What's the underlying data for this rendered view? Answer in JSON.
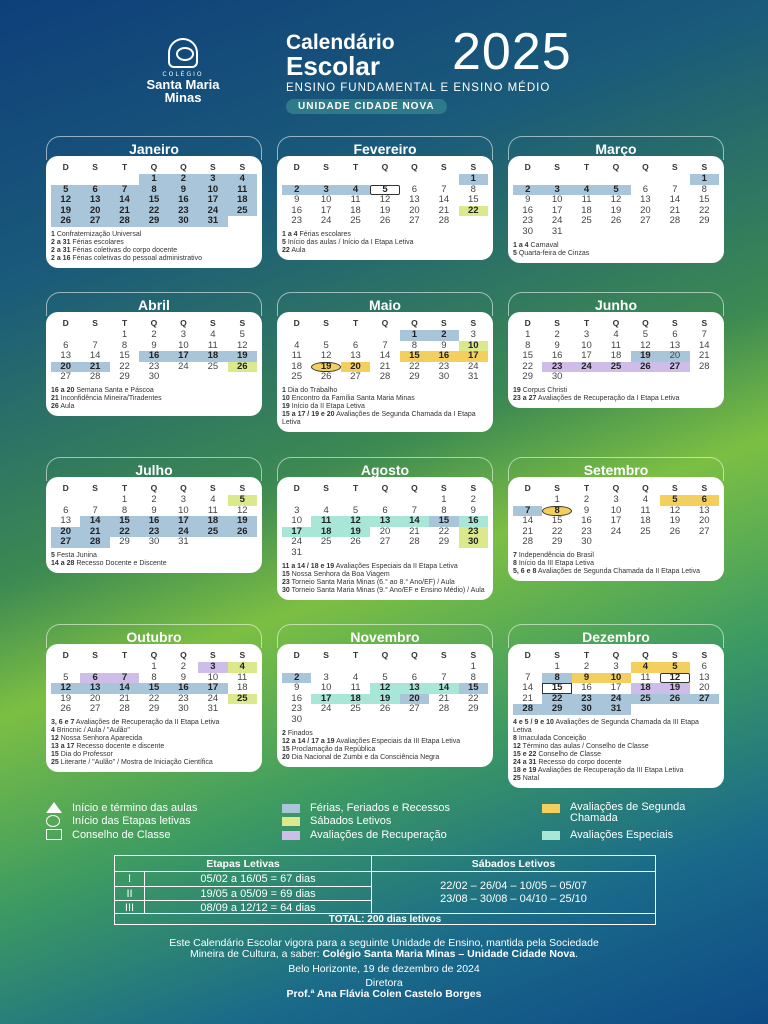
{
  "header": {
    "school_small": "COLÉGIO",
    "school_name_1": "Santa Maria",
    "school_name_2": "Minas",
    "title_1": "Calendário",
    "title_2": "Escolar",
    "year": "2025",
    "subtitle": "ENSINO FUNDAMENTAL E ENSINO MÉDIO",
    "unit": "UNIDADE CIDADE NOVA"
  },
  "weekdays": [
    "D",
    "S",
    "T",
    "Q",
    "Q",
    "S",
    "S"
  ],
  "colors": {
    "blue": "#a9c5da",
    "green": "#dbe88c",
    "purple": "#cdbde8",
    "yellow": "#f3cf5e",
    "mint": "#a8e6d8"
  },
  "months": [
    {
      "name": "Janeiro",
      "offset": 3,
      "days": 31,
      "marks": {
        "1": "blue b",
        "2": "blue b",
        "3": "blue b",
        "4": "blue b",
        "5": "blue b",
        "6": "blue b",
        "7": "blue b",
        "8": "blue b",
        "9": "blue b",
        "10": "blue b",
        "11": "blue b",
        "12": "blue b",
        "13": "blue b",
        "14": "blue b",
        "15": "blue b",
        "16": "blue b",
        "17": "blue b",
        "18": "blue b",
        "19": "blue b",
        "20": "blue b",
        "21": "blue b",
        "22": "blue b",
        "23": "blue b",
        "24": "blue b",
        "25": "blue b",
        "26": "blue b",
        "27": "blue b",
        "28": "blue b",
        "29": "blue b",
        "30": "blue b",
        "31": "blue b"
      },
      "notes": [
        {
          "d": "1",
          "t": "Confraternização Universal"
        },
        {
          "d": "2 a 31",
          "t": "Férias escolares"
        },
        {
          "d": "2 a 31",
          "t": "Férias coletivas do corpo docente"
        },
        {
          "d": "2 a 16",
          "t": "Férias coletivas do pessoal administrativo"
        }
      ]
    },
    {
      "name": "Fevereiro",
      "offset": 6,
      "days": 28,
      "marks": {
        "1": "blue b",
        "2": "blue b",
        "3": "blue b",
        "4": "blue b",
        "5": "tri b",
        "22": "green b"
      },
      "notes": [
        {
          "d": "1 a 4",
          "t": "Férias escolares"
        },
        {
          "d": "5",
          "t": "Início das aulas / Início da I Etapa Letiva"
        },
        {
          "d": "22",
          "t": "Aula"
        }
      ]
    },
    {
      "name": "Março",
      "offset": 6,
      "days": 31,
      "marks": {
        "1": "blue b",
        "2": "blue b",
        "3": "blue b",
        "4": "blue b",
        "5": "blue b"
      },
      "notes": [
        {
          "d": "1 a 4",
          "t": "Carnaval"
        },
        {
          "d": "5",
          "t": "Quarta-feira de Cinzas"
        }
      ]
    },
    {
      "name": "Abril",
      "offset": 2,
      "days": 30,
      "marks": {
        "16": "blue b",
        "17": "blue b",
        "18": "blue b",
        "19": "blue b",
        "20": "blue b",
        "21": "blue b",
        "26": "green b"
      },
      "notes": [
        {
          "d": "16 a 20",
          "t": "Semana Santa e Páscoa"
        },
        {
          "d": "21",
          "t": "Inconfidência Mineira/Tiradentes"
        },
        {
          "d": "26",
          "t": "Aula"
        }
      ]
    },
    {
      "name": "Maio",
      "offset": 4,
      "days": 31,
      "marks": {
        "1": "blue b",
        "2": "blue b",
        "10": "green b",
        "15": "yellow b",
        "16": "yellow b",
        "17": "yellow b",
        "19": "yellow circ b",
        "20": "yellow b"
      },
      "notes": [
        {
          "d": "1",
          "t": "Dia do Trabalho"
        },
        {
          "d": "10",
          "t": "Encontro da Família Santa Maria Minas"
        },
        {
          "d": "19",
          "t": "Início da II Etapa Letiva"
        },
        {
          "d": "15 a 17 / 19 e 20",
          "t": "Avaliações de Segunda Chamada da I Etapa Letiva"
        }
      ]
    },
    {
      "name": "Junho",
      "offset": 0,
      "days": 30,
      "marks": {
        "19": "blue b",
        "20": "blue",
        "23": "purple b",
        "24": "purple b",
        "25": "purple b",
        "26": "purple b",
        "27": "purple b"
      },
      "notes": [
        {
          "d": "19",
          "t": "Corpus Christi"
        },
        {
          "d": "23 a 27",
          "t": "Avaliações de Recuperação da I Etapa Letiva"
        }
      ]
    },
    {
      "name": "Julho",
      "offset": 2,
      "days": 31,
      "marks": {
        "5": "green b",
        "14": "blue b",
        "15": "blue b",
        "16": "blue b",
        "17": "blue b",
        "18": "blue b",
        "19": "blue b",
        "20": "blue b",
        "21": "blue b",
        "22": "blue b",
        "23": "blue b",
        "24": "blue b",
        "25": "blue b",
        "26": "blue b",
        "27": "blue b",
        "28": "blue b"
      },
      "notes": [
        {
          "d": "5",
          "t": "Festa Junina"
        },
        {
          "d": "14 a 28",
          "t": "Recesso Docente e Discente"
        }
      ]
    },
    {
      "name": "Agosto",
      "offset": 5,
      "days": 31,
      "marks": {
        "11": "mint b",
        "12": "mint b",
        "13": "mint b",
        "14": "mint b",
        "15": "blue b",
        "16": "mint b",
        "17": "mint b",
        "18": "mint b",
        "19": "mint b",
        "23": "green b",
        "30": "green b"
      },
      "notes": [
        {
          "d": "11 a 14 / 18 e 19",
          "t": "Avaliações Especiais da II Etapa Letiva"
        },
        {
          "d": "15",
          "t": "Nossa Senhora da Boa Viagem"
        },
        {
          "d": "23",
          "t": "Torneio Santa Maria Minas (6.° ao 8.° Ano/EF) / Aula"
        },
        {
          "d": "30",
          "t": "Torneio Santa Maria Minas (9.° Ano/EF e Ensino Médio) / Aula"
        }
      ]
    },
    {
      "name": "Setembro",
      "offset": 1,
      "days": 30,
      "marks": {
        "5": "yellow b",
        "6": "yellow b",
        "7": "blue b",
        "8": "yellow circ b"
      },
      "notes": [
        {
          "d": "7",
          "t": "Independência do Brasil"
        },
        {
          "d": "8",
          "t": "Início da III Etapa Letiva"
        },
        {
          "d": "5, 6 e 8",
          "t": "Avaliações de Segunda Chamada da II Etapa Letiva"
        }
      ]
    },
    {
      "name": "Outubro",
      "offset": 3,
      "days": 31,
      "marks": {
        "3": "purple b",
        "4": "green b",
        "6": "purple b",
        "7": "purple b",
        "12": "blue b",
        "13": "blue b",
        "14": "blue b",
        "15": "blue b",
        "16": "blue b",
        "17": "blue b",
        "25": "green b"
      },
      "notes": [
        {
          "d": "3, 6 e 7",
          "t": "Avaliações de Recuperação da II Etapa Letiva"
        },
        {
          "d": "4",
          "t": "Brincnic / Aula / \"Aulão\""
        },
        {
          "d": "12",
          "t": "Nossa Senhora Aparecida"
        },
        {
          "d": "13 a 17",
          "t": "Recesso docente e discente"
        },
        {
          "d": "15",
          "t": "Dia do Professor"
        },
        {
          "d": "25",
          "t": "Literarte / \"Aulão\" / Mostra de Iniciação Científica"
        }
      ]
    },
    {
      "name": "Novembro",
      "offset": 6,
      "days": 30,
      "marks": {
        "2": "blue b",
        "12": "mint b",
        "13": "mint b",
        "14": "mint b",
        "15": "blue b",
        "17": "mint b",
        "18": "mint b",
        "19": "mint b",
        "20": "blue b"
      },
      "notes": [
        {
          "d": "2",
          "t": "Finados"
        },
        {
          "d": "12 a 14 / 17 a 19",
          "t": "Avaliações Especiais da III Etapa Letiva"
        },
        {
          "d": "15",
          "t": "Proclamação da República"
        },
        {
          "d": "20",
          "t": "Dia Nacional de Zumbi e da Consciência Negra"
        }
      ]
    },
    {
      "name": "Dezembro",
      "offset": 1,
      "days": 31,
      "marks": {
        "4": "yellow b",
        "5": "yellow b",
        "8": "blue b",
        "9": "yellow b",
        "10": "yellow b",
        "12": "tri b",
        "15": "box b",
        "18": "purple b",
        "19": "purple b",
        "22": "blue b",
        "23": "blue b",
        "24": "blue b",
        "25": "blue b",
        "26": "blue b",
        "27": "blue b",
        "28": "blue b",
        "29": "blue b",
        "30": "blue b",
        "31": "blue b"
      },
      "notes": [
        {
          "d": "4 e 5 / 9 e 10",
          "t": "Avaliações de Segunda Chamada da III Etapa Letiva"
        },
        {
          "d": "8",
          "t": "Imaculada Conceição"
        },
        {
          "d": "12",
          "t": "Término das aulas / Conselho de Classe"
        },
        {
          "d": "15 e 22",
          "t": "Conselho de Classe"
        },
        {
          "d": "24 a 31",
          "t": "Recesso do corpo docente"
        },
        {
          "d": "18 e 19",
          "t": "Avaliações de Recuperação da III Etapa Letiva"
        },
        {
          "d": "25",
          "t": "Natal"
        }
      ]
    }
  ],
  "legend": {
    "start_end": "Início e término das aulas",
    "stages_start": "Início das Etapas letivas",
    "class_council": "Conselho de Classe",
    "holidays": "Férias, Feriados e Recessos",
    "saturdays": "Sábados Letivos",
    "recovery": "Avaliações de Recuperação",
    "second_call": "Avaliações de Segunda Chamada",
    "special": "Avaliações Especiais"
  },
  "stages_table": {
    "header_stages": "Etapas Letivas",
    "header_saturdays": "Sábados Letivos",
    "rows": [
      {
        "n": "I",
        "v": "05/02 a 16/05 = 67 dias"
      },
      {
        "n": "II",
        "v": "19/05 a 05/09 = 69 dias"
      },
      {
        "n": "III",
        "v": "08/09 a 12/12 = 64 dias"
      }
    ],
    "saturdays_line_1": "22/02 – 26/04 – 10/05 – 05/07",
    "saturdays_line_2": "23/08 – 30/08 – 04/10 – 25/10",
    "total": "TOTAL: 200 dias letivos"
  },
  "footer": {
    "line_1": "Este Calendário Escolar vigora para a seguinte Unidade de Ensino, mantida pela Sociedade",
    "line_2a": "Mineira de Cultura, a saber: ",
    "line_2b": "Colégio Santa Maria Minas – Unidade Cidade Nova",
    "line_2c": ".",
    "date": "Belo Horizonte, 19 de dezembro de 2024",
    "role": "Diretora",
    "name": "Prof.ª Ana Flávia Colen Castelo Borges"
  }
}
